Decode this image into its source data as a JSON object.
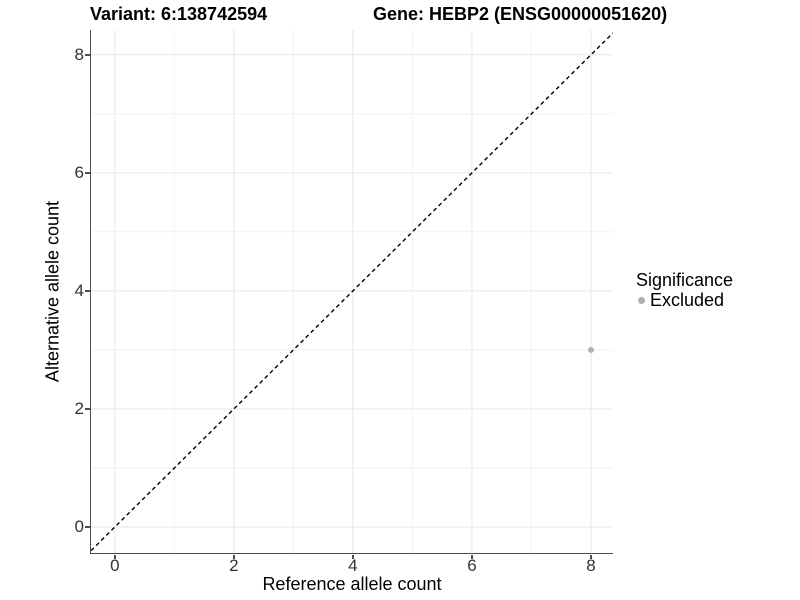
{
  "titles": {
    "variant": "Variant: 6:138742594",
    "gene": "Gene: HEBP2 (ENSG00000051620)"
  },
  "chart_data": {
    "type": "scatter",
    "title": "Variant: 6:138742594   Gene: HEBP2 (ENSG00000051620)",
    "xlabel": "Reference allele count",
    "ylabel": "Alternative allele count",
    "xlim": [
      -0.4,
      8.37
    ],
    "ylim": [
      -0.44,
      8.42
    ],
    "xticks": [
      0,
      2,
      4,
      6,
      8
    ],
    "yticks": [
      0,
      2,
      4,
      6,
      8
    ],
    "grid": "major+minor",
    "legend": {
      "title": "Significance",
      "position": "right",
      "entries": [
        {
          "label": "Excluded",
          "color": "#b0b0b0"
        }
      ]
    },
    "series": [
      {
        "name": "Excluded",
        "color": "#b0b0b0",
        "marker_radius": 3,
        "points": [
          {
            "x": 8,
            "y": 3
          }
        ]
      }
    ],
    "reference_line": {
      "type": "identity",
      "linetype": "dashed",
      "color": "#000000"
    }
  },
  "style": {
    "background": "#ffffff",
    "axis_line_color": "#4d4d4d",
    "tick_color": "#4d4d4d",
    "tick_label_color": "#333333",
    "grid_major_color": "#e6e6e6",
    "grid_minor_color": "#f1f1f1",
    "text_color": "#000000"
  }
}
